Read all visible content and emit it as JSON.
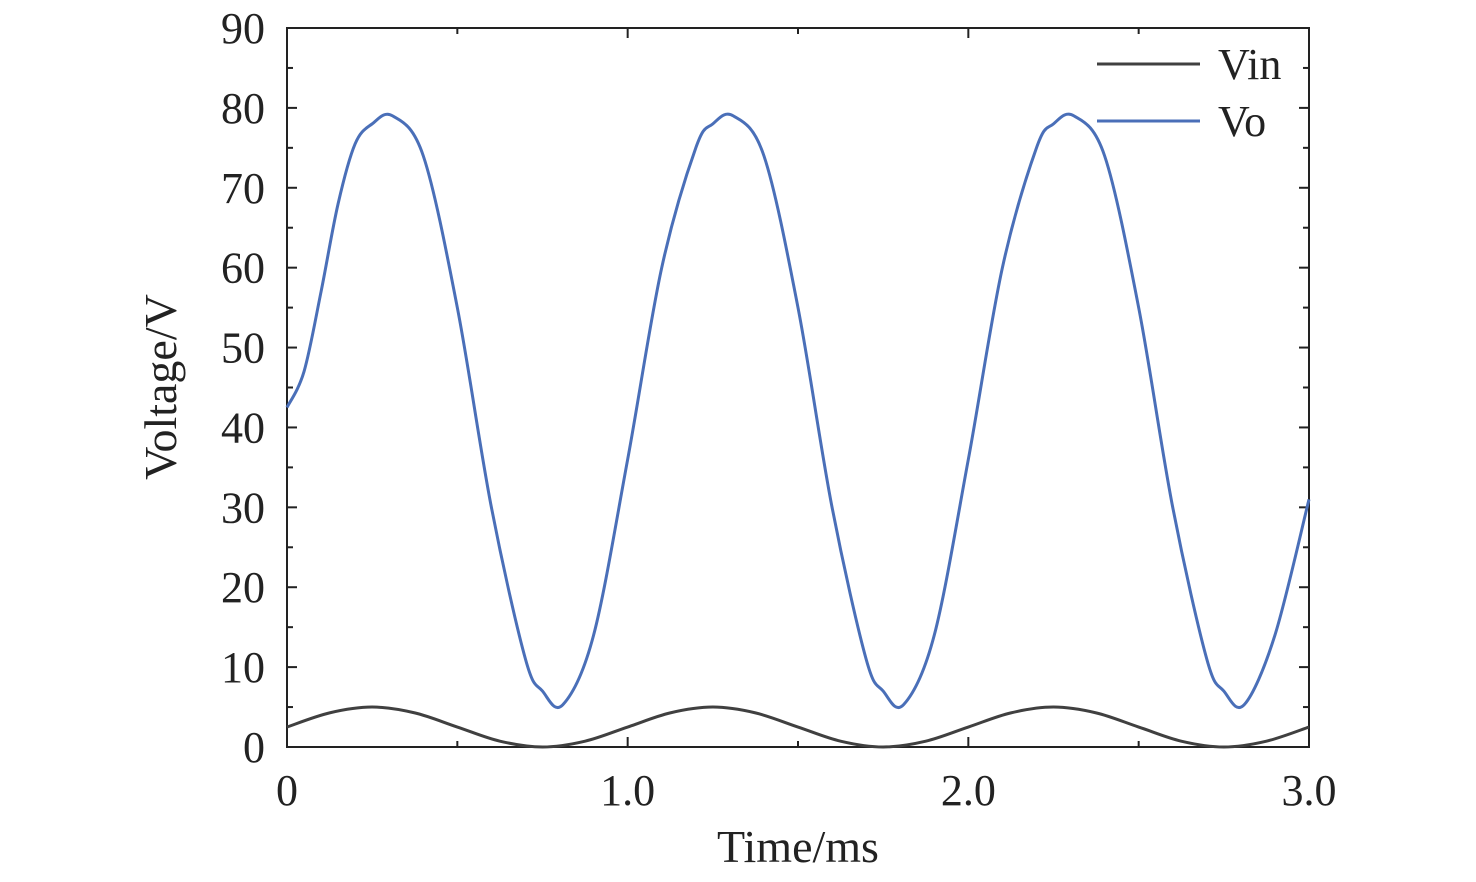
{
  "chart_data": {
    "type": "line",
    "title": "",
    "xlabel": "Time/ms",
    "ylabel": "Voltage/V",
    "xlim": [
      0,
      3.0
    ],
    "ylim": [
      0,
      90
    ],
    "x_ticks": [
      0,
      1.0,
      2.0,
      3.0
    ],
    "x_tick_labels": [
      "0",
      "1.0",
      "2.0",
      "3.0"
    ],
    "y_ticks": [
      0,
      10,
      20,
      30,
      40,
      50,
      60,
      70,
      80,
      90
    ],
    "y_tick_labels": [
      "0",
      "10",
      "20",
      "30",
      "40",
      "50",
      "60",
      "70",
      "80",
      "90"
    ],
    "grid": false,
    "legend_position": "top-right",
    "series": [
      {
        "name": "Vin",
        "color": "#404040",
        "x": [
          0,
          0.125,
          0.25,
          0.375,
          0.5,
          0.625,
          0.75,
          0.875,
          1.0,
          1.125,
          1.25,
          1.375,
          1.5,
          1.625,
          1.75,
          1.875,
          2.0,
          2.125,
          2.25,
          2.375,
          2.5,
          2.625,
          2.75,
          2.875,
          3.0
        ],
        "y": [
          2.5,
          4.27,
          5.0,
          4.27,
          2.5,
          0.73,
          0.0,
          0.73,
          2.5,
          4.27,
          5.0,
          4.27,
          2.5,
          0.73,
          0.0,
          0.73,
          2.5,
          4.27,
          5.0,
          4.27,
          2.5,
          0.73,
          0.0,
          0.73,
          2.5
        ]
      },
      {
        "name": "Vo",
        "color": "#4a6fb8",
        "x": [
          0,
          0.05,
          0.1,
          0.15,
          0.2,
          0.25,
          0.31,
          0.4,
          0.5,
          0.6,
          0.7,
          0.75,
          0.81,
          0.9,
          1.0,
          1.1,
          1.2,
          1.25,
          1.31,
          1.4,
          1.5,
          1.6,
          1.7,
          1.75,
          1.81,
          1.9,
          2.0,
          2.1,
          2.2,
          2.25,
          2.31,
          2.4,
          2.5,
          2.6,
          2.7,
          2.75,
          2.81,
          2.9,
          3.0
        ],
        "y": [
          42.5,
          47,
          57,
          68,
          75.5,
          78,
          79,
          74,
          55,
          30,
          11,
          7,
          5.3,
          14,
          36,
          60,
          75,
          78,
          79,
          74,
          55,
          30,
          11,
          7,
          5.3,
          14,
          36,
          60,
          75,
          78,
          79,
          74,
          55,
          30,
          11,
          7,
          5.3,
          14,
          31
        ]
      }
    ]
  }
}
